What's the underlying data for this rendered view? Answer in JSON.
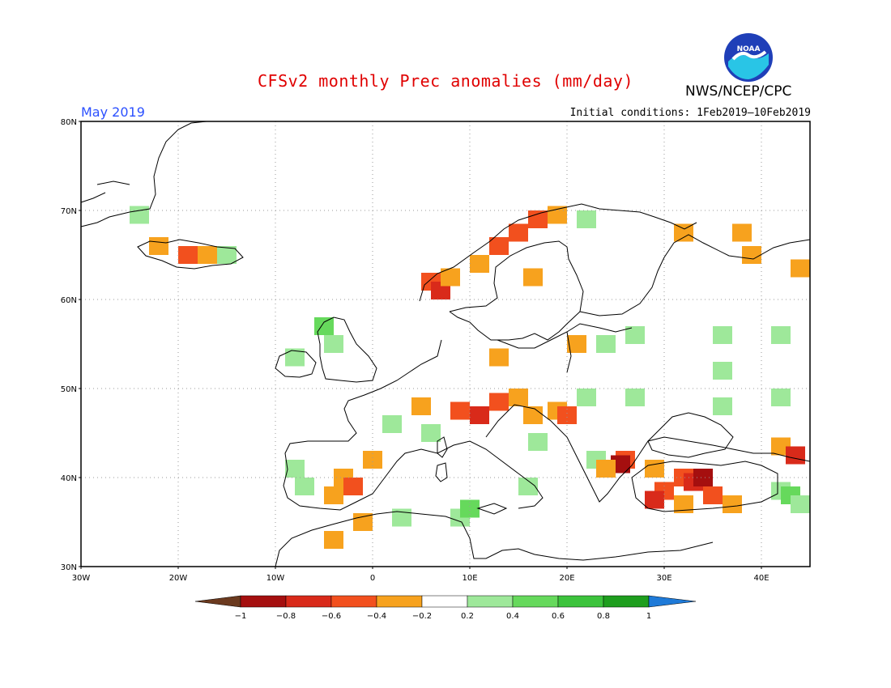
{
  "title": "CFSv2 monthly Prec anomalies (mm/day)",
  "agency": "NWS/NCEP/CPC",
  "logo_text": "NOAA",
  "valid_month": "May 2019",
  "initial_conditions": "Initial conditions: 1Feb2019—10Feb2019",
  "lat_labels": [
    "80N",
    "70N",
    "60N",
    "50N",
    "40N",
    "30N"
  ],
  "lon_labels": [
    "30W",
    "20W",
    "10W",
    "0",
    "10E",
    "20E",
    "30E",
    "40E"
  ],
  "colorbar": {
    "ticks": [
      "−1",
      "−0.8",
      "−0.6",
      "−0.4",
      "−0.2",
      "0.2",
      "0.4",
      "0.6",
      "0.8",
      "1"
    ],
    "colors": [
      "#6b3a1f",
      "#a50f0f",
      "#d92a1a",
      "#f2501e",
      "#f7a21e",
      "#ffffff",
      "#9ee89a",
      "#66d95c",
      "#3cc33c",
      "#1e9e1e",
      "#1e7ad8"
    ]
  },
  "anomaly_cells": {
    "note_units": "mm/day",
    "levels": {
      "-0.2": "#f7a21e",
      "-0.4": "#f2501e",
      "-0.6": "#d92a1a",
      "-0.8": "#a50f0f",
      "0.2": "#9ee89a",
      "0.4": "#66d95c"
    },
    "cells": [
      {
        "lon": -24,
        "lat": 69.5,
        "v": 0.2
      },
      {
        "lon": -22,
        "lat": 66,
        "v": -0.2
      },
      {
        "lon": -19,
        "lat": 65,
        "v": -0.4
      },
      {
        "lon": -17,
        "lat": 65,
        "v": -0.2
      },
      {
        "lon": -15,
        "lat": 65,
        "v": 0.2
      },
      {
        "lon": 6,
        "lat": 62,
        "v": -0.4
      },
      {
        "lon": 7,
        "lat": 61,
        "v": -0.6
      },
      {
        "lon": 8,
        "lat": 62.5,
        "v": -0.2
      },
      {
        "lon": 11,
        "lat": 64,
        "v": -0.2
      },
      {
        "lon": 13,
        "lat": 66,
        "v": -0.4
      },
      {
        "lon": 15,
        "lat": 67.5,
        "v": -0.4
      },
      {
        "lon": 17,
        "lat": 69,
        "v": -0.4
      },
      {
        "lon": 19,
        "lat": 69.5,
        "v": -0.2
      },
      {
        "lon": 16.5,
        "lat": 62.5,
        "v": -0.2
      },
      {
        "lon": 22,
        "lat": 69,
        "v": 0.2
      },
      {
        "lon": 32,
        "lat": 67.5,
        "v": -0.2
      },
      {
        "lon": 38,
        "lat": 67.5,
        "v": -0.2
      },
      {
        "lon": 39,
        "lat": 65,
        "v": -0.2
      },
      {
        "lon": 44,
        "lat": 63.5,
        "v": -0.2
      },
      {
        "lon": -5,
        "lat": 57,
        "v": 0.4
      },
      {
        "lon": -4,
        "lat": 55,
        "v": 0.2
      },
      {
        "lon": -8,
        "lat": 53.5,
        "v": 0.2
      },
      {
        "lon": 13,
        "lat": 53.5,
        "v": -0.2
      },
      {
        "lon": 21,
        "lat": 55,
        "v": -0.2
      },
      {
        "lon": 24,
        "lat": 55,
        "v": 0.2
      },
      {
        "lon": 27,
        "lat": 56,
        "v": 0.2
      },
      {
        "lon": 36,
        "lat": 56,
        "v": 0.2
      },
      {
        "lon": 42,
        "lat": 56,
        "v": 0.2
      },
      {
        "lon": 36,
        "lat": 52,
        "v": 0.2
      },
      {
        "lon": 42,
        "lat": 49,
        "v": 0.2
      },
      {
        "lon": 36,
        "lat": 48,
        "v": 0.2
      },
      {
        "lon": 22,
        "lat": 49,
        "v": 0.2
      },
      {
        "lon": 27,
        "lat": 49,
        "v": 0.2
      },
      {
        "lon": 5,
        "lat": 48,
        "v": -0.2
      },
      {
        "lon": 9,
        "lat": 47.5,
        "v": -0.4
      },
      {
        "lon": 11,
        "lat": 47,
        "v": -0.6
      },
      {
        "lon": 13,
        "lat": 48.5,
        "v": -0.4
      },
      {
        "lon": 15,
        "lat": 49,
        "v": -0.2
      },
      {
        "lon": 16.5,
        "lat": 47,
        "v": -0.2
      },
      {
        "lon": 19,
        "lat": 47.5,
        "v": -0.2
      },
      {
        "lon": 20,
        "lat": 47,
        "v": -0.4
      },
      {
        "lon": 2,
        "lat": 46,
        "v": 0.2
      },
      {
        "lon": 6,
        "lat": 45,
        "v": 0.2
      },
      {
        "lon": 17,
        "lat": 44,
        "v": 0.2
      },
      {
        "lon": 23,
        "lat": 42,
        "v": 0.2
      },
      {
        "lon": 26,
        "lat": 42,
        "v": -0.4
      },
      {
        "lon": 25.5,
        "lat": 41.5,
        "v": -0.8
      },
      {
        "lon": 24,
        "lat": 41,
        "v": -0.2
      },
      {
        "lon": 29,
        "lat": 41,
        "v": -0.2
      },
      {
        "lon": 30,
        "lat": 38.5,
        "v": -0.4
      },
      {
        "lon": 29,
        "lat": 37.5,
        "v": -0.6
      },
      {
        "lon": 32,
        "lat": 40,
        "v": -0.4
      },
      {
        "lon": 33,
        "lat": 39.5,
        "v": -0.6
      },
      {
        "lon": 34,
        "lat": 40,
        "v": -0.8
      },
      {
        "lon": 35,
        "lat": 38,
        "v": -0.4
      },
      {
        "lon": 32,
        "lat": 37,
        "v": -0.2
      },
      {
        "lon": 37,
        "lat": 37,
        "v": -0.2
      },
      {
        "lon": 42,
        "lat": 38.5,
        "v": 0.2
      },
      {
        "lon": 43,
        "lat": 38,
        "v": 0.4
      },
      {
        "lon": 44,
        "lat": 37,
        "v": 0.2
      },
      {
        "lon": 42,
        "lat": 43.5,
        "v": -0.2
      },
      {
        "lon": 43.5,
        "lat": 42.5,
        "v": -0.6
      },
      {
        "lon": -8,
        "lat": 41,
        "v": 0.2
      },
      {
        "lon": -7,
        "lat": 39,
        "v": 0.2
      },
      {
        "lon": -3,
        "lat": 40,
        "v": -0.2
      },
      {
        "lon": -2,
        "lat": 39,
        "v": -0.4
      },
      {
        "lon": -4,
        "lat": 38,
        "v": -0.2
      },
      {
        "lon": 0,
        "lat": 42,
        "v": -0.2
      },
      {
        "lon": -1,
        "lat": 35,
        "v": -0.2
      },
      {
        "lon": -4,
        "lat": 33,
        "v": -0.2
      },
      {
        "lon": 3,
        "lat": 35.5,
        "v": 0.2
      },
      {
        "lon": 9,
        "lat": 35.5,
        "v": 0.2
      },
      {
        "lon": 10,
        "lat": 36.5,
        "v": 0.4
      },
      {
        "lon": 16,
        "lat": 39,
        "v": 0.2
      }
    ]
  }
}
